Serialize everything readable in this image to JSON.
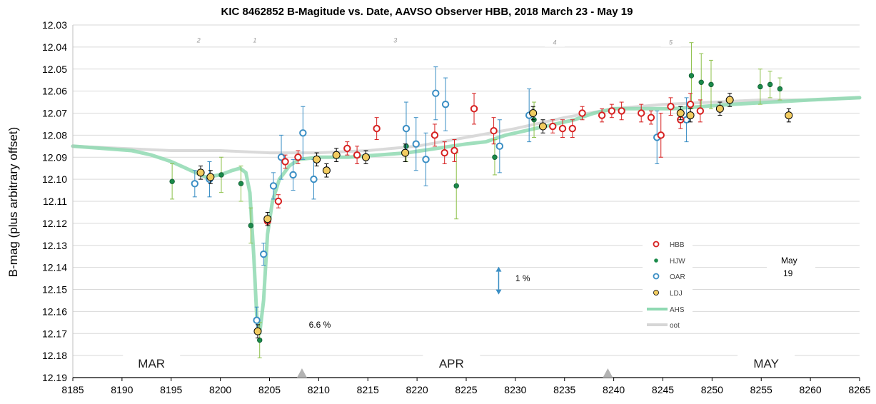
{
  "chart_data": {
    "type": "scatter",
    "title": "KIC 8462852 B-Magitude vs. Date, AAVSO Observer HBB, 2018 March 23 - May 19",
    "xlabel": "",
    "ylabel": "B-mag (plus arbitrary offset)",
    "xlim": [
      8185,
      8265
    ],
    "ylim": [
      12.19,
      12.03
    ],
    "y_inverted": true,
    "x_ticks": [
      "8185",
      "8190",
      "8195",
      "8200",
      "8205",
      "8210",
      "8215",
      "8220",
      "8225",
      "8230",
      "8235",
      "8240",
      "8245",
      "8250",
      "8255",
      "8260",
      "8265"
    ],
    "y_ticks": [
      "12.03",
      "12.04",
      "12.05",
      "12.06",
      "12.07",
      "12.08",
      "12.09",
      "12.10",
      "12.11",
      "12.12",
      "12.13",
      "12.14",
      "12.15",
      "12.16",
      "12.17",
      "12.18",
      "12.19"
    ],
    "grid": "horizontal",
    "legend_position": "right",
    "series": [
      {
        "name": "HBB",
        "color": "#d62020",
        "style": "open-circle",
        "points": [
          [
            8204.8,
            12.119,
            0.002
          ],
          [
            8205.9,
            12.11,
            0.003
          ],
          [
            8206.6,
            12.092,
            0.003
          ],
          [
            8207.9,
            12.09,
            0.003
          ],
          [
            8212.9,
            12.086,
            0.003
          ],
          [
            8213.9,
            12.089,
            0.004
          ],
          [
            8215.9,
            12.077,
            0.005
          ],
          [
            8221.8,
            12.08,
            0.005
          ],
          [
            8222.8,
            12.088,
            0.005
          ],
          [
            8223.8,
            12.087,
            0.005
          ],
          [
            8225.8,
            12.068,
            0.007
          ],
          [
            8227.8,
            12.078,
            0.006
          ],
          [
            8233.8,
            12.076,
            0.003
          ],
          [
            8234.8,
            12.077,
            0.004
          ],
          [
            8235.8,
            12.077,
            0.004
          ],
          [
            8236.8,
            12.07,
            0.003
          ],
          [
            8238.8,
            12.071,
            0.003
          ],
          [
            8239.8,
            12.069,
            0.003
          ],
          [
            8240.8,
            12.069,
            0.004
          ],
          [
            8242.8,
            12.07,
            0.004
          ],
          [
            8243.8,
            12.072,
            0.003
          ],
          [
            8244.8,
            12.08,
            0.01
          ],
          [
            8245.8,
            12.067,
            0.004
          ],
          [
            8246.8,
            12.073,
            0.004
          ],
          [
            8247.8,
            12.066,
            0.005
          ],
          [
            8248.8,
            12.069,
            0.005
          ]
        ]
      },
      {
        "name": "HJW",
        "color": "#1a8a4a",
        "style": "filled-dot",
        "points": [
          [
            8195.1,
            12.101,
            0.008
          ],
          [
            8200.1,
            12.098,
            0.008
          ],
          [
            8202.1,
            12.102,
            0.008
          ],
          [
            8203.1,
            12.121,
            0.008
          ],
          [
            8204.0,
            12.173,
            0.008
          ],
          [
            8218.9,
            12.085,
            0.007
          ],
          [
            8224.0,
            12.103,
            0.015
          ],
          [
            8227.9,
            12.09,
            0.008
          ],
          [
            8231.9,
            12.073,
            0.008
          ],
          [
            8247.9,
            12.053,
            0.015
          ],
          [
            8248.9,
            12.056,
            0.013
          ],
          [
            8249.9,
            12.057,
            0.011
          ],
          [
            8254.9,
            12.058,
            0.008
          ],
          [
            8255.9,
            12.057,
            0.006
          ],
          [
            8256.9,
            12.059,
            0.005
          ]
        ]
      },
      {
        "name": "OAR",
        "color": "#3a8ec4",
        "style": "open-circle",
        "points": [
          [
            8197.4,
            12.102,
            0.006
          ],
          [
            8198.9,
            12.1,
            0.008
          ],
          [
            8203.7,
            12.164,
            0.006
          ],
          [
            8204.4,
            12.134,
            0.005
          ],
          [
            8205.4,
            12.103,
            0.006
          ],
          [
            8206.2,
            12.09,
            0.01
          ],
          [
            8207.4,
            12.098,
            0.007
          ],
          [
            8208.4,
            12.079,
            0.012
          ],
          [
            8209.5,
            12.1,
            0.009
          ],
          [
            8218.9,
            12.077,
            0.012
          ],
          [
            8219.9,
            12.084,
            0.012
          ],
          [
            8220.9,
            12.091,
            0.012
          ],
          [
            8221.9,
            12.061,
            0.012
          ],
          [
            8222.9,
            12.066,
            0.012
          ],
          [
            8228.4,
            12.085,
            0.012
          ],
          [
            8231.4,
            12.071,
            0.012
          ],
          [
            8244.4,
            12.081,
            0.012
          ],
          [
            8247.4,
            12.073,
            0.01
          ]
        ]
      },
      {
        "name": "LDJ",
        "color": "#f2cc60",
        "style": "filled-circle-black-edge",
        "points": [
          [
            8198.0,
            12.097,
            0.003
          ],
          [
            8199.0,
            12.099,
            0.003
          ],
          [
            8203.8,
            12.169,
            0.003
          ],
          [
            8204.8,
            12.118,
            0.003
          ],
          [
            8209.8,
            12.091,
            0.003
          ],
          [
            8210.8,
            12.096,
            0.003
          ],
          [
            8211.8,
            12.089,
            0.003
          ],
          [
            8214.8,
            12.09,
            0.003
          ],
          [
            8218.8,
            12.088,
            0.004
          ],
          [
            8231.8,
            12.07,
            0.003
          ],
          [
            8232.8,
            12.076,
            0.003
          ],
          [
            8246.8,
            12.07,
            0.003
          ],
          [
            8247.8,
            12.071,
            0.003
          ],
          [
            8250.8,
            12.068,
            0.003
          ],
          [
            8251.8,
            12.064,
            0.003
          ],
          [
            8257.8,
            12.071,
            0.003
          ]
        ]
      },
      {
        "name": "AHS",
        "color": "#8fd9b2",
        "style": "line",
        "points": [
          [
            8185,
            12.085
          ],
          [
            8188,
            12.086
          ],
          [
            8191,
            12.087
          ],
          [
            8193,
            12.089
          ],
          [
            8195,
            12.092
          ],
          [
            8197,
            12.096
          ],
          [
            8198.5,
            12.099
          ],
          [
            8200,
            12.098
          ],
          [
            8201.2,
            12.096
          ],
          [
            8202,
            12.095
          ],
          [
            8202.6,
            12.097
          ],
          [
            8203,
            12.106
          ],
          [
            8203.4,
            12.135
          ],
          [
            8203.7,
            12.162
          ],
          [
            8204.0,
            12.17
          ],
          [
            8204.4,
            12.155
          ],
          [
            8204.8,
            12.125
          ],
          [
            8205.3,
            12.11
          ],
          [
            8206.0,
            12.1
          ],
          [
            8207,
            12.094
          ],
          [
            8208,
            12.091
          ],
          [
            8210,
            12.09
          ],
          [
            8213,
            12.09
          ],
          [
            8216,
            12.089
          ],
          [
            8219,
            12.088
          ],
          [
            8222,
            12.086
          ],
          [
            8225,
            12.084
          ],
          [
            8227,
            12.083
          ],
          [
            8229,
            12.08
          ],
          [
            8232,
            12.077
          ],
          [
            8234,
            12.075
          ],
          [
            8236,
            12.073
          ],
          [
            8238,
            12.07
          ],
          [
            8240,
            12.068
          ],
          [
            8243,
            12.068
          ],
          [
            8246,
            12.068
          ],
          [
            8249,
            12.067
          ],
          [
            8252,
            12.066
          ],
          [
            8256,
            12.065
          ],
          [
            8260,
            12.064
          ],
          [
            8265,
            12.063
          ]
        ]
      },
      {
        "name": "oot",
        "color": "#d6d6d6",
        "style": "line",
        "points": [
          [
            8185,
            12.085
          ],
          [
            8190,
            12.086
          ],
          [
            8195,
            12.087
          ],
          [
            8200,
            12.087
          ],
          [
            8205,
            12.088
          ],
          [
            8210,
            12.088
          ],
          [
            8215,
            12.087
          ],
          [
            8220,
            12.085
          ],
          [
            8225,
            12.081
          ],
          [
            8230,
            12.077
          ],
          [
            8235,
            12.072
          ],
          [
            8240,
            12.068
          ],
          [
            8245,
            12.066
          ],
          [
            8250,
            12.065
          ],
          [
            8255,
            12.064
          ],
          [
            8260,
            12.064
          ],
          [
            8265,
            12.063
          ]
        ]
      }
    ],
    "annotations": {
      "months": [
        {
          "label": "MAR",
          "x": 8193.0
        },
        {
          "label": "APR",
          "x": 8223.5
        },
        {
          "label": "MAY",
          "x": 8255.5
        }
      ],
      "triangles": [
        8208.3,
        8239.4
      ],
      "numbers": [
        {
          "label": "2",
          "x": 8197.8,
          "y": 12.037
        },
        {
          "label": "1",
          "x": 8203.5,
          "y": 12.037
        },
        {
          "label": "3",
          "x": 8217.8,
          "y": 12.037
        },
        {
          "label": "4",
          "x": 8234.0,
          "y": 12.038
        },
        {
          "label": "5",
          "x": 8245.8,
          "y": 12.038
        }
      ],
      "pct_dip": {
        "label": "6.6 %",
        "x": 8209.0,
        "y": 12.166
      },
      "pct_scale": {
        "label": "1 %",
        "x": 8230.0,
        "y": 12.145,
        "arrow_x": 8228.3,
        "arrow_y1": 12.14,
        "arrow_y2": 12.152
      },
      "may_note": {
        "line1": "May",
        "line2": "19"
      }
    }
  }
}
